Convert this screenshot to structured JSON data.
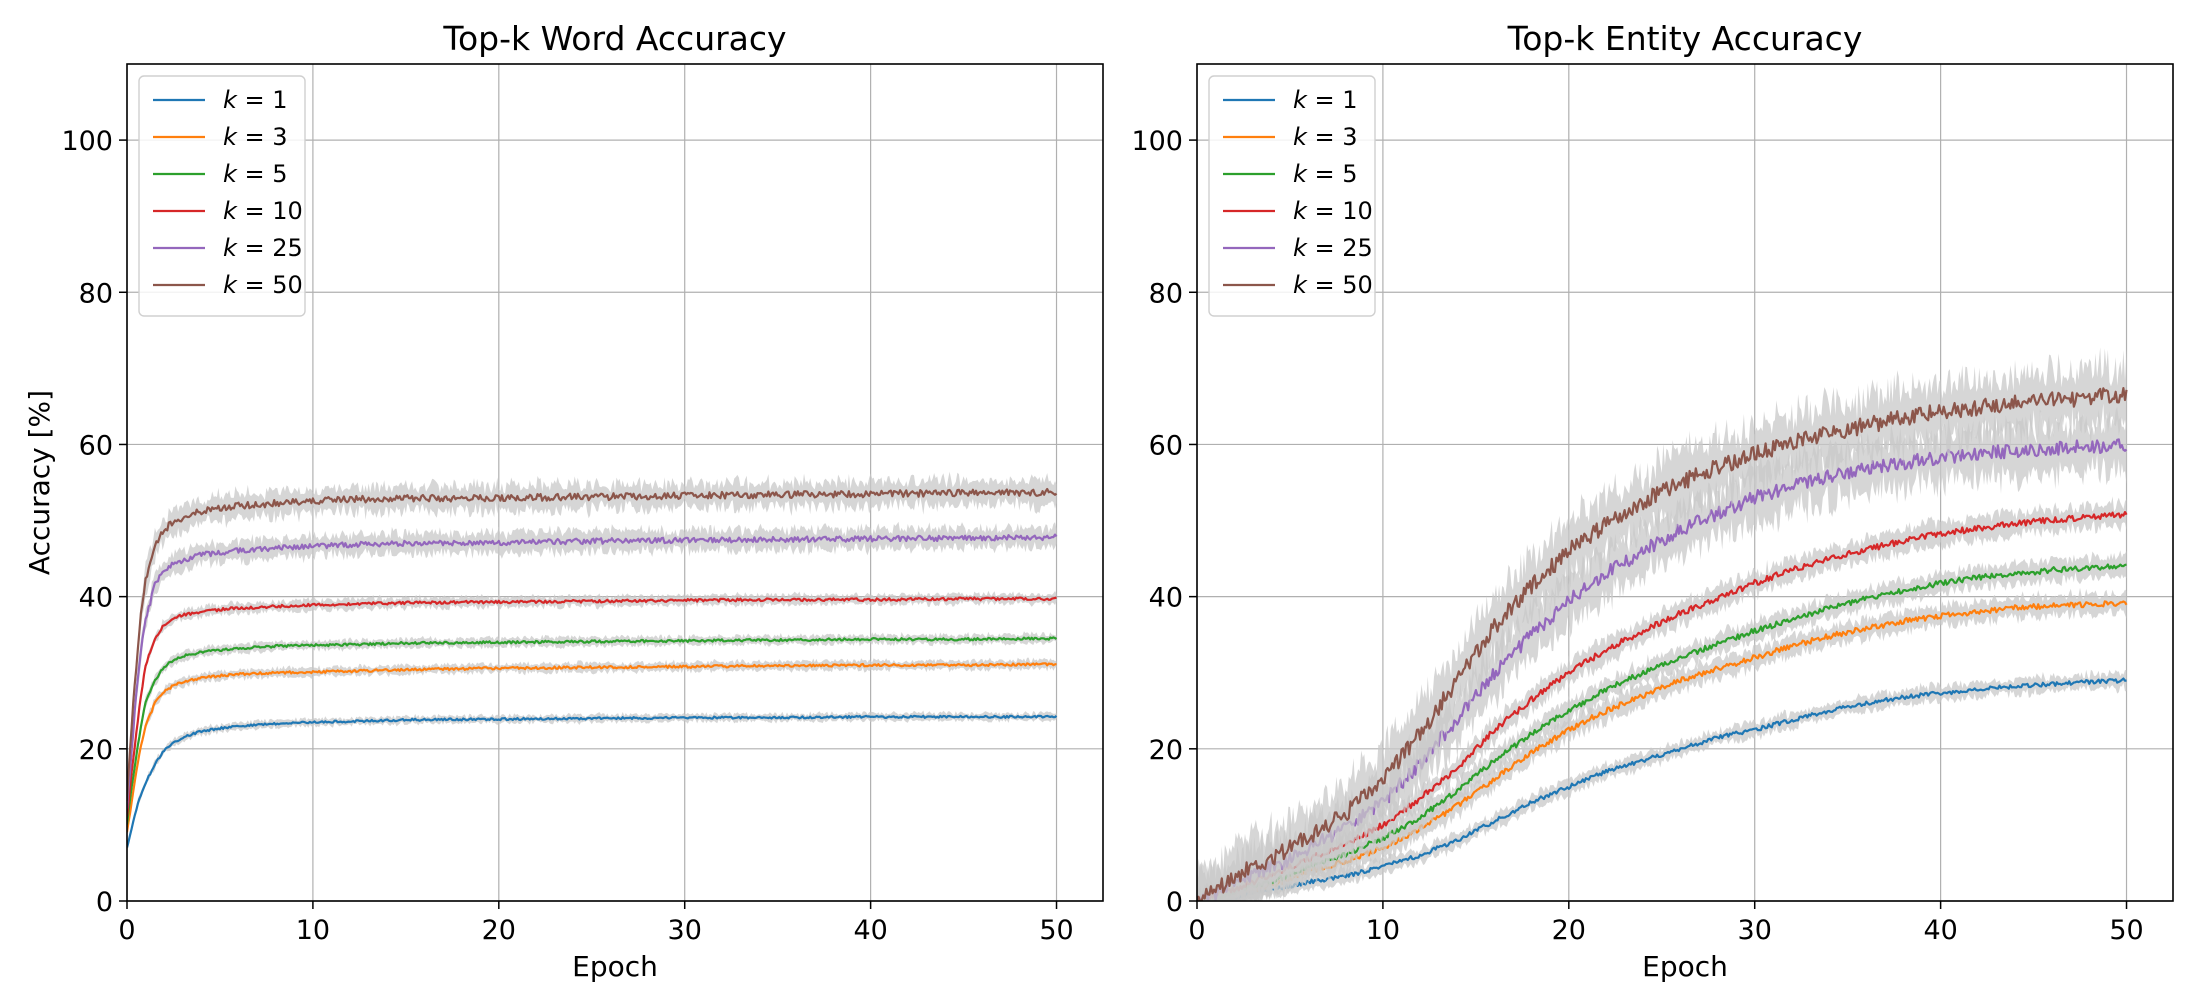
{
  "colors": {
    "k1": "#1f77b4",
    "k3": "#ff7f0e",
    "k5": "#2ca02c",
    "k10": "#d62728",
    "k25": "#9467bd",
    "k50": "#8c564b",
    "band": "#c8c8c8",
    "grid": "#b0b0b0"
  },
  "chart_data": [
    {
      "type": "line",
      "title": "Top-k Word Accuracy",
      "xlabel": "Epoch",
      "ylabel": "Accuracy [%]",
      "xlim": [
        0,
        52.5
      ],
      "ylim": [
        0,
        110
      ],
      "xticks": [
        0,
        10,
        20,
        30,
        40,
        50
      ],
      "yticks": [
        0,
        20,
        40,
        60,
        80,
        100
      ],
      "grid": true,
      "legend": "top-left",
      "x": [
        0,
        0.25,
        0.5,
        0.75,
        1,
        1.5,
        2,
        2.5,
        3,
        4,
        5,
        6,
        8,
        10,
        12,
        15,
        20,
        25,
        30,
        35,
        40,
        45,
        50
      ],
      "series": [
        {
          "name": "k = 1",
          "legend_k": "k",
          "legend_value": "1",
          "color_key": "k1",
          "values": [
            7,
            9.5,
            12,
            14,
            15.5,
            18,
            19.8,
            20.8,
            21.5,
            22.3,
            22.7,
            23,
            23.3,
            23.5,
            23.6,
            23.8,
            23.9,
            24,
            24.1,
            24.1,
            24.2,
            24.2,
            24.2
          ],
          "noise": 0.3
        },
        {
          "name": "k = 3",
          "legend_k": "k",
          "legend_value": "3",
          "color_key": "k3",
          "values": [
            9,
            13,
            17,
            20.5,
            23,
            26,
            27.5,
            28.3,
            28.8,
            29.3,
            29.6,
            29.8,
            30,
            30.1,
            30.2,
            30.4,
            30.6,
            30.7,
            30.8,
            30.9,
            31,
            31,
            31.1
          ],
          "noise": 0.35
        },
        {
          "name": "k = 5",
          "legend_k": "k",
          "legend_value": "5",
          "color_key": "k5",
          "values": [
            10,
            15,
            19,
            23,
            26,
            29,
            30.8,
            31.6,
            32.2,
            32.7,
            33,
            33.2,
            33.5,
            33.6,
            33.7,
            33.9,
            34,
            34.1,
            34.2,
            34.3,
            34.4,
            34.4,
            34.5
          ],
          "noise": 0.35
        },
        {
          "name": "k = 10",
          "legend_k": "k",
          "legend_value": "10",
          "color_key": "k10",
          "values": [
            11,
            17,
            22,
            27,
            31,
            34.5,
            36.3,
            37.1,
            37.6,
            38,
            38.3,
            38.5,
            38.7,
            38.9,
            39,
            39.2,
            39.3,
            39.4,
            39.5,
            39.6,
            39.6,
            39.7,
            39.7
          ],
          "noise": 0.4
        },
        {
          "name": "k = 25",
          "legend_k": "k",
          "legend_value": "25",
          "color_key": "k25",
          "values": [
            12,
            20,
            27,
            33,
            37,
            41.5,
            43.5,
            44.3,
            44.8,
            45.5,
            45.8,
            46.1,
            46.4,
            46.6,
            46.8,
            47,
            47.1,
            47.3,
            47.4,
            47.5,
            47.6,
            47.7,
            47.8
          ],
          "noise": 0.8
        },
        {
          "name": "k = 50",
          "legend_k": "k",
          "legend_value": "50",
          "color_key": "k50",
          "values": [
            13,
            23,
            31,
            38,
            42,
            46.5,
            48.8,
            49.8,
            50.4,
            51.2,
            51.6,
            51.9,
            52.3,
            52.6,
            52.8,
            52.9,
            53,
            53.1,
            53.3,
            53.4,
            53.5,
            53.6,
            53.7
          ],
          "noise": 1.0
        }
      ]
    },
    {
      "type": "line",
      "title": "Top-k Entity Accuracy",
      "xlabel": "Epoch",
      "ylabel": "",
      "xlim": [
        0,
        52.5
      ],
      "ylim": [
        0,
        110
      ],
      "xticks": [
        0,
        10,
        20,
        30,
        40,
        50
      ],
      "yticks": [
        0,
        20,
        40,
        60,
        80,
        100
      ],
      "grid": true,
      "legend": "top-left",
      "x": [
        0,
        1,
        2,
        3,
        4,
        5,
        6,
        8,
        10,
        12,
        14,
        16,
        18,
        20,
        22,
        24,
        26,
        28,
        30,
        32,
        34,
        36,
        38,
        40,
        42,
        44,
        46,
        48,
        50
      ],
      "series": [
        {
          "name": "k = 1",
          "legend_k": "k",
          "legend_value": "1",
          "color_key": "k1",
          "values": [
            0,
            0,
            0.5,
            1,
            1.5,
            2,
            2.5,
            3.3,
            4.5,
            6,
            8,
            10.5,
            13,
            15,
            17,
            18.5,
            20,
            21.5,
            22.5,
            23.8,
            25,
            26,
            26.8,
            27.3,
            27.8,
            28.2,
            28.5,
            28.8,
            29
          ],
          "noise": 0.6
        },
        {
          "name": "k = 3",
          "legend_k": "k",
          "legend_value": "3",
          "color_key": "k3",
          "values": [
            0,
            0.5,
            1,
            1.5,
            2,
            3,
            4,
            5.2,
            7,
            9.5,
            12.5,
            16,
            19.5,
            22.5,
            25,
            27,
            29,
            30.5,
            32,
            33.5,
            34.8,
            35.8,
            36.8,
            37.5,
            38,
            38.5,
            38.8,
            39,
            39.2
          ],
          "noise": 0.8
        },
        {
          "name": "k = 5",
          "legend_k": "k",
          "legend_value": "5",
          "color_key": "k5",
          "values": [
            0,
            0.5,
            1.2,
            2,
            2.5,
            3.5,
            4.5,
            6.2,
            8.2,
            11,
            14.5,
            18.5,
            22,
            25,
            27.8,
            30,
            32,
            33.8,
            35.5,
            37,
            38.5,
            39.8,
            40.8,
            41.8,
            42.5,
            43,
            43.5,
            43.8,
            44
          ],
          "noise": 0.8
        },
        {
          "name": "k = 10",
          "legend_k": "k",
          "legend_value": "10",
          "color_key": "k10",
          "values": [
            0,
            0.8,
            1.5,
            2.5,
            3.5,
            4.5,
            5.5,
            7.5,
            10,
            13.5,
            17.5,
            22.5,
            26.5,
            30,
            33,
            35.5,
            37.8,
            39.8,
            41.8,
            43.5,
            45,
            46.2,
            47.3,
            48.3,
            49,
            49.6,
            50.1,
            50.5,
            50.8
          ],
          "noise": 0.9
        },
        {
          "name": "k = 25",
          "legend_k": "k",
          "legend_value": "25",
          "color_key": "k25",
          "values": [
            0,
            1,
            2.5,
            3.5,
            4.5,
            5.5,
            7,
            9.5,
            13,
            18,
            24,
            30,
            35,
            39.5,
            43,
            46,
            48.8,
            51,
            53,
            54.5,
            55.8,
            56.8,
            57.6,
            58.3,
            58.8,
            59.2,
            59.5,
            59.7,
            60
          ],
          "noise": 2.0
        },
        {
          "name": "k = 50",
          "legend_k": "k",
          "legend_value": "50",
          "color_key": "k50",
          "values": [
            0,
            1.5,
            3,
            4.5,
            5.5,
            7,
            8.5,
            11.5,
            16,
            22,
            29,
            36,
            41.5,
            46,
            49.5,
            52.5,
            55,
            57,
            58.8,
            60.2,
            61.5,
            62.5,
            63.5,
            64.3,
            64.9,
            65.4,
            65.8,
            66.2,
            66.5
          ],
          "noise": 2.4
        }
      ]
    }
  ]
}
